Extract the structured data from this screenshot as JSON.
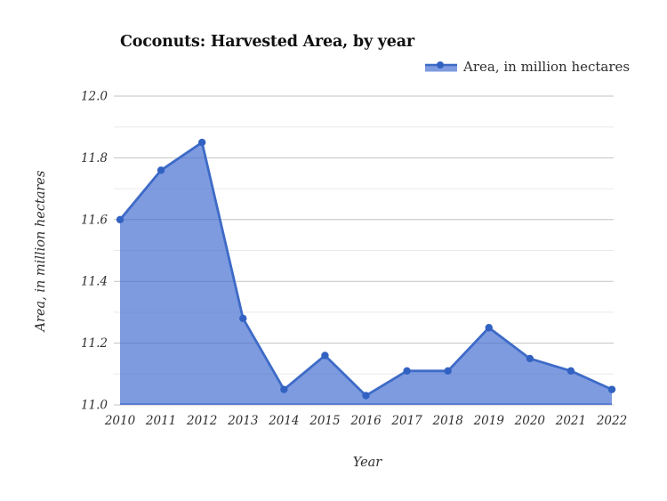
{
  "title": "Coconuts: Harvested Area, by year",
  "legend": {
    "label": "Area, in million hectares"
  },
  "axes": {
    "x_title": "Year",
    "y_title": "Area, in million hectares"
  },
  "chart_data": {
    "type": "area",
    "title": "Coconuts: Harvested Area, by year",
    "categories": [
      "2010",
      "2011",
      "2012",
      "2013",
      "2014",
      "2015",
      "2016",
      "2017",
      "2018",
      "2019",
      "2020",
      "2021",
      "2022"
    ],
    "series": [
      {
        "name": "Area, in million hectares",
        "values": [
          11.6,
          11.76,
          11.85,
          11.28,
          11.05,
          11.16,
          11.03,
          11.11,
          11.11,
          11.25,
          11.15,
          11.11,
          11.05
        ]
      }
    ],
    "xlabel": "Year",
    "ylabel": "Area, in million hectares",
    "ylim": [
      11.0,
      12.0
    ],
    "y_major_tick_step": 0.2,
    "y_minor_tick_step": 0.1,
    "y_tick_labels": [
      "11.0",
      "11.2",
      "11.4",
      "11.6",
      "11.8",
      "12.0"
    ],
    "grid": true,
    "legend_position": "top-right",
    "colors": {
      "line": "#3e6bc7",
      "fill": "#3f6ad1",
      "fill_opacity": 0.67,
      "marker": "#3262c1",
      "baseline": "#5a7dd2",
      "grid_major": "#c3c3c3",
      "grid_minor": "#e9e9e9",
      "tick_text": "#2f2f2f",
      "title_text": "#111111"
    }
  }
}
